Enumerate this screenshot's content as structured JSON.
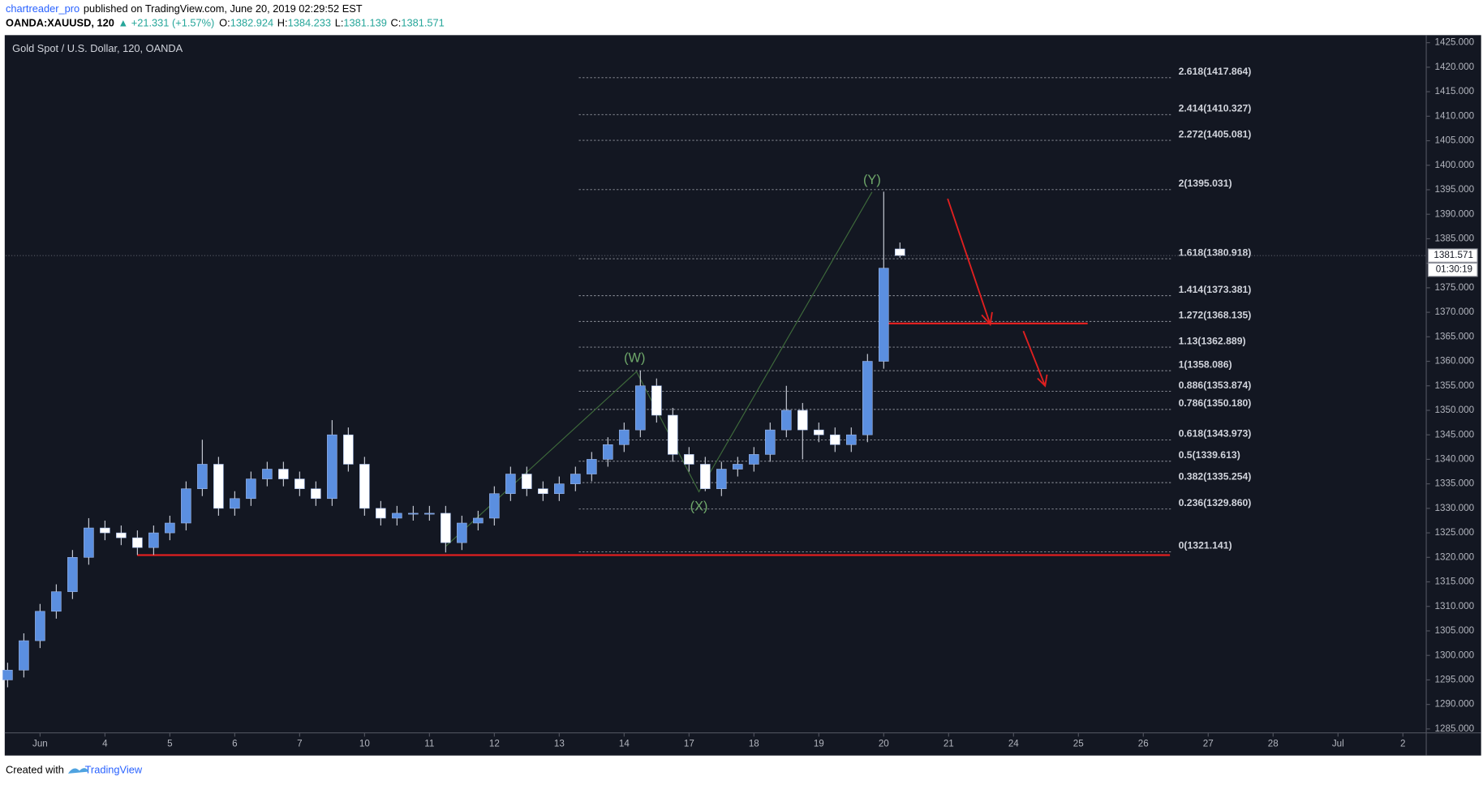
{
  "header": {
    "author": "chartreader_pro",
    "published": "published on TradingView.com, June 20, 2019 02:29:52 EST",
    "symbol": "OANDA:XAUUSD, 120",
    "change": "▲ +21.331 (+1.57%)",
    "o_label": "O:",
    "o": "1382.924",
    "h_label": "H:",
    "h": "1384.233",
    "l_label": "L:",
    "l": "1381.139",
    "c_label": "C:",
    "c": "1381.571"
  },
  "footer": {
    "created": "Created with",
    "brand": "TradingView"
  },
  "chart_data": {
    "type": "candlestick",
    "title": "Gold Spot / U.S. Dollar, 120, OANDA",
    "x": [
      -0.5,
      -0.25,
      0,
      0.25,
      0.5,
      0.75,
      1,
      1.25,
      1.5,
      1.75,
      2,
      2.25,
      2.5,
      2.75,
      3,
      3.25,
      3.5,
      3.75,
      4,
      4.25,
      4.5,
      4.75,
      5,
      5.25,
      5.5,
      5.75,
      6,
      6.25,
      6.5,
      6.75,
      7,
      7.25,
      7.5,
      7.75,
      8,
      8.25,
      8.5,
      8.75,
      9,
      9.25,
      9.5,
      9.75,
      10,
      10.25,
      10.5,
      10.75,
      11,
      11.25,
      11.5,
      11.75,
      12,
      12.25,
      12.5,
      12.75,
      13,
      13.25
    ],
    "open": [
      1295,
      1297,
      1303,
      1309,
      1313,
      1320,
      1326,
      1325,
      1324,
      1322,
      1325,
      1327,
      1334,
      1339,
      1330,
      1332,
      1336,
      1338,
      1336,
      1334,
      1332,
      1345,
      1339,
      1330,
      1328,
      1329,
      1329,
      1329,
      1323,
      1327,
      1328,
      1333,
      1337,
      1334,
      1333,
      1335,
      1337,
      1340,
      1343,
      1346,
      1355,
      1349,
      1341,
      1339,
      1334,
      1338,
      1339,
      1341,
      1346,
      1350,
      1346,
      1345,
      1343,
      1345,
      1360,
      1382.924
    ],
    "high": [
      1298.5,
      1304.5,
      1310.5,
      1314.5,
      1321.5,
      1328,
      1327.5,
      1326.5,
      1325.5,
      1326.5,
      1328.5,
      1335.5,
      1344,
      1340.5,
      1333.5,
      1337.5,
      1339.5,
      1339.5,
      1337.5,
      1335.5,
      1348,
      1346.5,
      1340.5,
      1331.5,
      1330.5,
      1330.5,
      1330.5,
      1330.5,
      1328.5,
      1329.5,
      1334.5,
      1338.5,
      1338.5,
      1335.5,
      1336.5,
      1338.5,
      1341.5,
      1344.5,
      1347.5,
      1358.1,
      1356.5,
      1350.5,
      1342.5,
      1340.5,
      1339.5,
      1340.5,
      1342.5,
      1347.5,
      1355,
      1351.5,
      1347.5,
      1346.5,
      1346.5,
      1361.5,
      1394.6,
      1384.233
    ],
    "low": [
      1293.5,
      1295.5,
      1301.5,
      1307.5,
      1311.5,
      1318.5,
      1323.5,
      1322.5,
      1320.5,
      1320.5,
      1323.5,
      1325.5,
      1332.5,
      1328.5,
      1328.5,
      1330.5,
      1334.5,
      1334.5,
      1332.5,
      1330.5,
      1330.5,
      1337.5,
      1328.5,
      1326.5,
      1326.5,
      1327.5,
      1327.5,
      1321,
      1321.5,
      1325.5,
      1326.5,
      1331.5,
      1332.5,
      1331.5,
      1331.5,
      1333.5,
      1335.5,
      1338.5,
      1341.5,
      1344.5,
      1347.5,
      1339.5,
      1337.5,
      1333.5,
      1332.5,
      1336.5,
      1337.5,
      1339.5,
      1344.5,
      1340,
      1343.5,
      1341.5,
      1341.5,
      1343.5,
      1358.5,
      1381.139
    ],
    "close": [
      1297,
      1303,
      1309,
      1313,
      1320,
      1326,
      1325,
      1324,
      1322,
      1325,
      1327,
      1334,
      1339,
      1330,
      1332,
      1336,
      1338,
      1336,
      1334,
      1332,
      1345,
      1339,
      1330,
      1328,
      1329,
      1329,
      1329,
      1323,
      1327,
      1328,
      1333,
      1337,
      1334,
      1333,
      1335,
      1337,
      1340,
      1343,
      1346,
      1355,
      1349,
      1341,
      1339,
      1334,
      1338,
      1339,
      1341,
      1346,
      1350,
      1346,
      1345,
      1343,
      1345,
      1360,
      1379,
      1381.571
    ],
    "up_color": "#5b8fe0",
    "down_color": "#ffffff",
    "wick_color": "#c8ccd6",
    "xlim": [
      -0.53,
      21.36
    ],
    "ylim": [
      1284.2,
      1426.35
    ],
    "xticks": [
      {
        "value": 0,
        "label": "Jun"
      },
      {
        "value": 1,
        "label": "4"
      },
      {
        "value": 2,
        "label": "5"
      },
      {
        "value": 3,
        "label": "6"
      },
      {
        "value": 4,
        "label": "7"
      },
      {
        "value": 5,
        "label": "10"
      },
      {
        "value": 6,
        "label": "11"
      },
      {
        "value": 7,
        "label": "12"
      },
      {
        "value": 8,
        "label": "13"
      },
      {
        "value": 9,
        "label": "14"
      },
      {
        "value": 10,
        "label": "17"
      },
      {
        "value": 11,
        "label": "18"
      },
      {
        "value": 12,
        "label": "19"
      },
      {
        "value": 13,
        "label": "20"
      },
      {
        "value": 14,
        "label": "21"
      },
      {
        "value": 15,
        "label": "24"
      },
      {
        "value": 16,
        "label": "25"
      },
      {
        "value": 17,
        "label": "26"
      },
      {
        "value": 18,
        "label": "27"
      },
      {
        "value": 19,
        "label": "28"
      },
      {
        "value": 20,
        "label": "Jul"
      },
      {
        "value": 21,
        "label": "2"
      }
    ],
    "yticks": [
      {
        "value": 1285,
        "label": "1285.000"
      },
      {
        "value": 1290,
        "label": "1290.000"
      },
      {
        "value": 1295,
        "label": "1295.000"
      },
      {
        "value": 1300,
        "label": "1300.000"
      },
      {
        "value": 1305,
        "label": "1305.000"
      },
      {
        "value": 1310,
        "label": "1310.000"
      },
      {
        "value": 1315,
        "label": "1315.000"
      },
      {
        "value": 1320,
        "label": "1320.000"
      },
      {
        "value": 1325,
        "label": "1325.000"
      },
      {
        "value": 1330,
        "label": "1330.000"
      },
      {
        "value": 1335,
        "label": "1335.000"
      },
      {
        "value": 1340,
        "label": "1340.000"
      },
      {
        "value": 1345,
        "label": "1345.000"
      },
      {
        "value": 1350,
        "label": "1350.000"
      },
      {
        "value": 1355,
        "label": "1355.000"
      },
      {
        "value": 1360,
        "label": "1360.000"
      },
      {
        "value": 1365,
        "label": "1365.000"
      },
      {
        "value": 1370,
        "label": "1370.000"
      },
      {
        "value": 1375,
        "label": "1375.000"
      },
      {
        "value": 1380,
        "label": "1380.000"
      },
      {
        "value": 1385,
        "label": "1385.000"
      },
      {
        "value": 1390,
        "label": "1390.000"
      },
      {
        "value": 1395,
        "label": "1395.000"
      },
      {
        "value": 1400,
        "label": "1400.000"
      },
      {
        "value": 1405,
        "label": "1405.000"
      },
      {
        "value": 1410,
        "label": "1410.000"
      },
      {
        "value": 1415,
        "label": "1415.000"
      },
      {
        "value": 1420,
        "label": "1420.000"
      },
      {
        "value": 1425,
        "label": "1425.000"
      }
    ],
    "countdown": "01:30:19",
    "fib_levels": [
      {
        "value": 1417.864,
        "label": "2.618(1417.864)"
      },
      {
        "value": 1410.327,
        "label": "2.414(1410.327)"
      },
      {
        "value": 1405.081,
        "label": "2.272(1405.081)"
      },
      {
        "value": 1395.031,
        "label": "2(1395.031)"
      },
      {
        "value": 1380.918,
        "label": "1.618(1380.918)"
      },
      {
        "value": 1373.381,
        "label": "1.414(1373.381)"
      },
      {
        "value": 1368.135,
        "label": "1.272(1368.135)"
      },
      {
        "value": 1362.889,
        "label": "1.13(1362.889)"
      },
      {
        "value": 1358.086,
        "label": "1(1358.086)"
      },
      {
        "value": 1353.874,
        "label": "0.886(1353.874)"
      },
      {
        "value": 1350.18,
        "label": "0.786(1350.180)"
      },
      {
        "value": 1343.973,
        "label": "0.618(1343.973)"
      },
      {
        "value": 1339.613,
        "label": "0.5(1339.613)"
      },
      {
        "value": 1335.254,
        "label": "0.382(1335.254)"
      },
      {
        "value": 1329.86,
        "label": "0.236(1329.860)"
      },
      {
        "value": 1321.141,
        "label": "0(1321.141)"
      }
    ],
    "annotations": [
      "(W)",
      "(X)",
      "(Y)"
    ]
  }
}
